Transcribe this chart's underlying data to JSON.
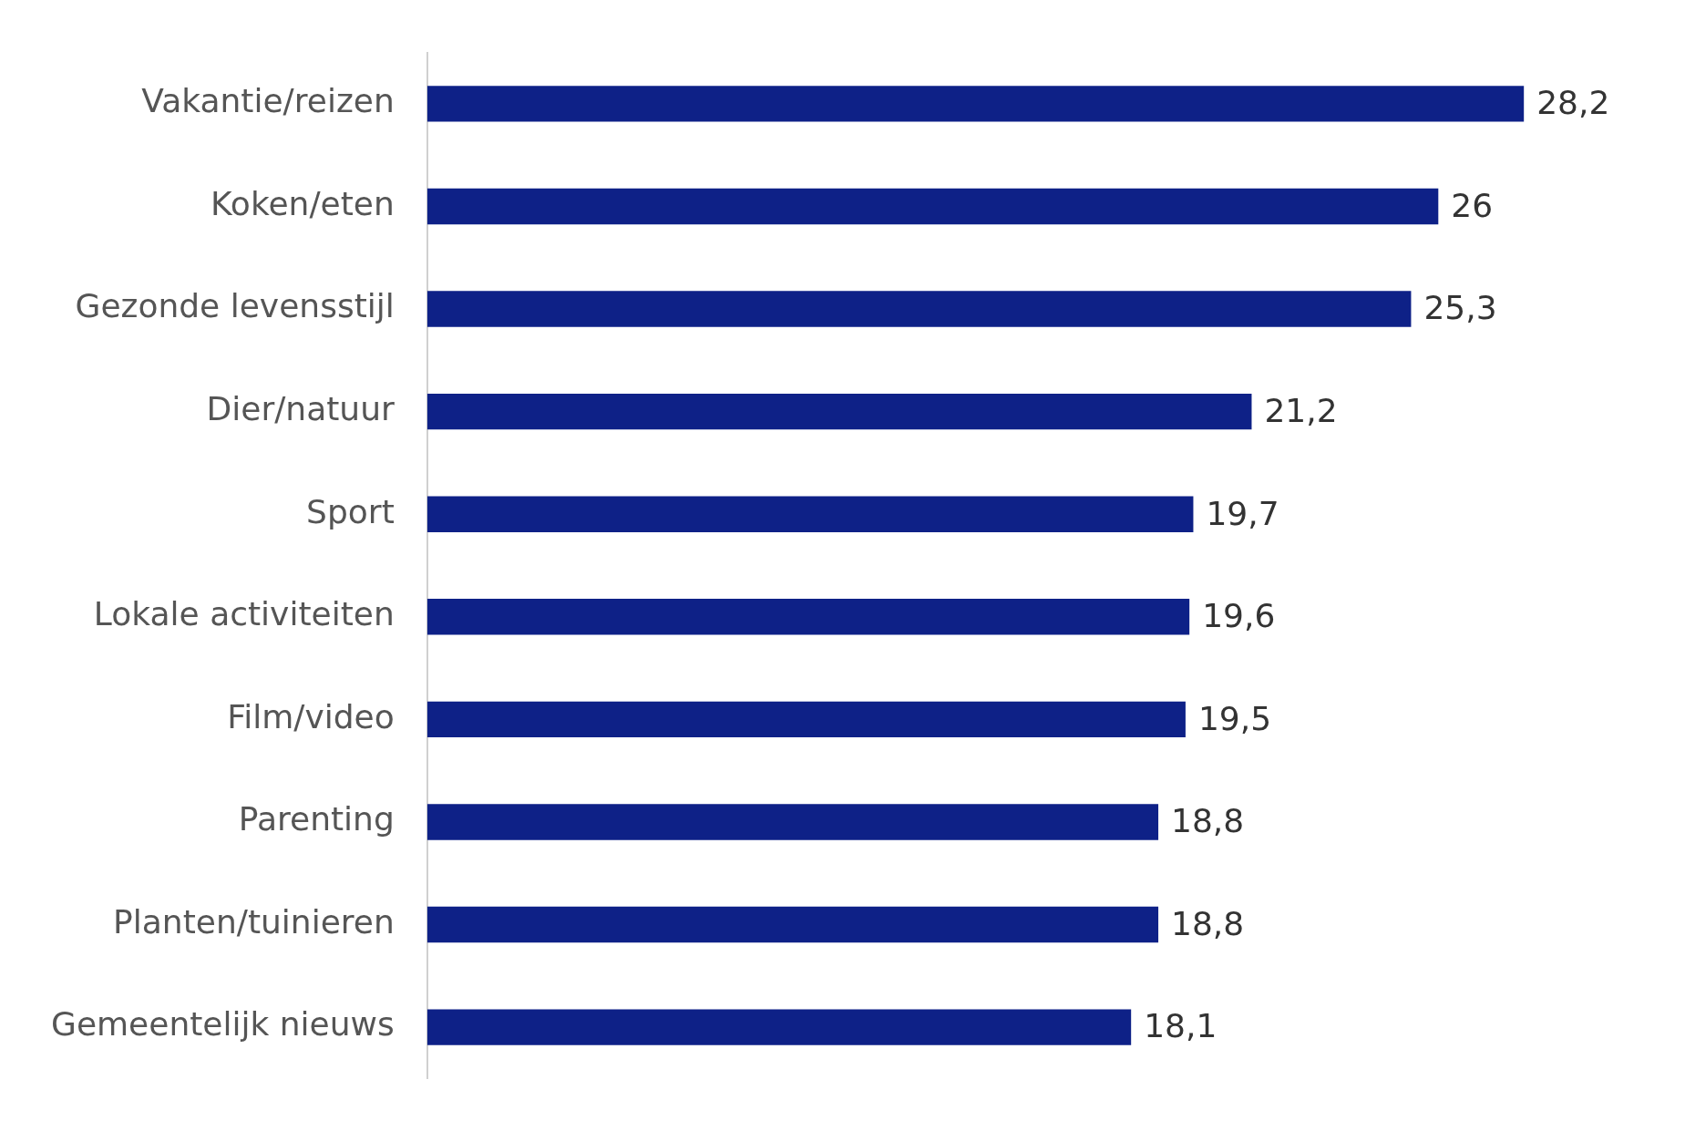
{
  "chart_data": {
    "type": "bar",
    "orientation": "horizontal",
    "categories": [
      "Vakantie/reizen",
      "Koken/eten",
      "Gezonde levensstijl",
      "Dier/natuur",
      "Sport",
      "Lokale activiteiten",
      "Film/video",
      "Parenting",
      "Planten/tuinieren",
      "Gemeentelijk nieuws"
    ],
    "values": [
      28.2,
      26,
      25.3,
      21.2,
      19.7,
      19.6,
      19.5,
      18.8,
      18.8,
      18.1
    ],
    "value_labels": [
      "28,2",
      "26",
      "25,3",
      "21,2",
      "19,7",
      "19,6",
      "19,5",
      "18,8",
      "18,8",
      "18,1"
    ],
    "color": "#0e2187",
    "legend": false,
    "tick_labels": "y"
  }
}
